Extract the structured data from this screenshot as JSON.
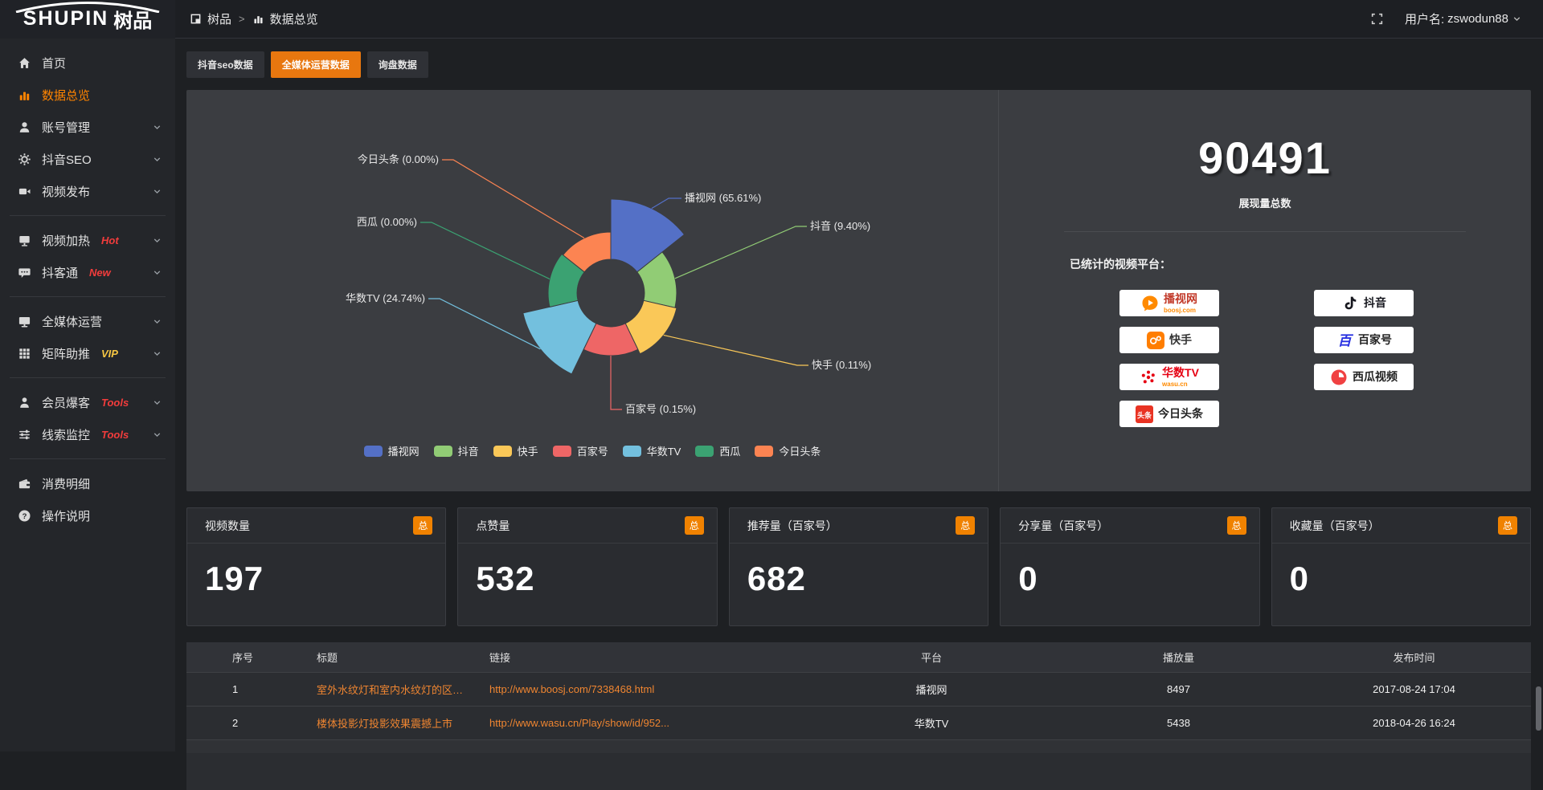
{
  "topbar": {
    "logo_en": "SHUPIN",
    "logo_cn": "树品",
    "breadcrumb": {
      "root": "树品",
      "separator": ">",
      "current": "数据总览"
    },
    "user": {
      "prefix": "用户名: ",
      "name": "zswodun88"
    }
  },
  "sidebar": {
    "items": [
      {
        "id": "home",
        "label": "首页",
        "icon": "home-icon"
      },
      {
        "id": "data-overview",
        "label": "数据总览",
        "icon": "chart-icon",
        "active": true
      },
      {
        "id": "account-manage",
        "label": "账号管理",
        "icon": "user-icon",
        "chevron": true
      },
      {
        "id": "douyin-seo",
        "label": "抖音SEO",
        "icon": "gear-icon",
        "chevron": true
      },
      {
        "id": "video-publish",
        "label": "视频发布",
        "icon": "camera-icon",
        "chevron": true
      },
      {
        "divider": true
      },
      {
        "id": "video-heat",
        "label": "视频加热",
        "icon": "screen-icon",
        "badge": "Hot",
        "badge_color": "#f23c3c",
        "chevron": true
      },
      {
        "id": "douketong",
        "label": "抖客通",
        "icon": "chat-icon",
        "badge": "New",
        "badge_color": "#f23c3c",
        "chevron": true
      },
      {
        "divider": true
      },
      {
        "id": "media-operation",
        "label": "全媒体运营",
        "icon": "monitor-icon",
        "chevron": true
      },
      {
        "id": "matrix-boost",
        "label": "矩阵助推",
        "icon": "grid-icon",
        "badge": "VIP",
        "badge_color": "#f6c643",
        "chevron": true
      },
      {
        "divider": true
      },
      {
        "id": "member-baoke",
        "label": "会员爆客",
        "icon": "person-icon",
        "badge": "Tools",
        "badge_color": "#f23c3c",
        "chevron": true
      },
      {
        "id": "lead-monitor",
        "label": "线索监控",
        "icon": "sliders-icon",
        "badge": "Tools",
        "badge_color": "#f23c3c",
        "chevron": true
      },
      {
        "divider": true
      },
      {
        "id": "consume-detail",
        "label": "消费明细",
        "icon": "wallet-icon"
      },
      {
        "id": "operation-guide",
        "label": "操作说明",
        "icon": "help-icon"
      }
    ]
  },
  "tabs": [
    {
      "id": "douyin-seo-data",
      "label": "抖音seo数据"
    },
    {
      "id": "media-operation-data",
      "label": "全媒体运营数据",
      "active": true
    },
    {
      "id": "inquiry-data",
      "label": "询盘数据"
    }
  ],
  "chart_data": {
    "type": "pie",
    "subtype": "nightingale-rose",
    "title": "",
    "categories": [
      "播视网",
      "抖音",
      "快手",
      "百家号",
      "华数TV",
      "西瓜",
      "今日头条"
    ],
    "values_percent": [
      65.61,
      9.4,
      0.11,
      0.15,
      24.74,
      0.0,
      0.0
    ],
    "colors": [
      "#5470c6",
      "#91cc75",
      "#fac858",
      "#ee6666",
      "#73c0de",
      "#3ba272",
      "#fc8452"
    ],
    "legend": [
      "播视网",
      "抖音",
      "快手",
      "百家号",
      "华数TV",
      "西瓜",
      "今日头条"
    ],
    "legend_position": "bottom",
    "radius_hint_px": [
      117,
      82,
      84,
      78,
      112,
      78,
      76
    ],
    "inner_radius_px": 42
  },
  "summary": {
    "total": "90491",
    "total_label": "展现量总数",
    "platforms_label": "已统计的视频平台：",
    "platforms": [
      {
        "name": "播视网",
        "sub": "boosj.com",
        "logo": "boosj-play-icon",
        "text_color": "#c23a2a",
        "col": 1
      },
      {
        "name": "快手",
        "logo": "kuaishou-icon",
        "text_color": "#333333",
        "col": 1
      },
      {
        "name": "华数TV",
        "sub": "wasu.cn",
        "logo": "wasu-burst-icon",
        "text_color": "#e60012",
        "col": 1
      },
      {
        "name": "今日头条",
        "logo": "toutiao-icon",
        "text_color": "#222222",
        "col": 1
      },
      {
        "name": "抖音",
        "logo": "douyin-note-icon",
        "text_color": "#17181f",
        "col": 2
      },
      {
        "name": "百家号",
        "logo": "baijia-icon",
        "text_color": "#222222",
        "col": 2
      },
      {
        "name": "西瓜视频",
        "logo": "xigua-icon",
        "text_color": "#222222",
        "col": 2
      }
    ]
  },
  "stat_cards": [
    {
      "title": "视频数量",
      "badge": "总",
      "value": "197"
    },
    {
      "title": "点赞量",
      "badge": "总",
      "value": "532"
    },
    {
      "title": "推荐量（百家号）",
      "badge": "总",
      "value": "682"
    },
    {
      "title": "分享量（百家号）",
      "badge": "总",
      "value": "0"
    },
    {
      "title": "收藏量（百家号）",
      "badge": "总",
      "value": "0"
    }
  ],
  "table": {
    "headers": [
      "序号",
      "标题",
      "链接",
      "平台",
      "播放量",
      "发布时间"
    ],
    "rows": [
      {
        "no": "1",
        "title": "室外水纹灯和室内水纹灯的区别和简介",
        "link": "http://www.boosj.com/7338468.html",
        "platform": "播视网",
        "plays": "8497",
        "time": "2017-08-24 17:04"
      },
      {
        "no": "2",
        "title": "楼体投影灯投影效果震撼上市",
        "link": "http://www.wasu.cn/Play/show/id/952...",
        "platform": "华数TV",
        "plays": "5438",
        "time": "2018-04-26 16:24"
      }
    ]
  },
  "colors": {
    "accent_orange": "#e8770f",
    "sidebar_active_orange": "#ff8400",
    "link_orange": "#ef8531",
    "badge_orange": "#f08200"
  }
}
